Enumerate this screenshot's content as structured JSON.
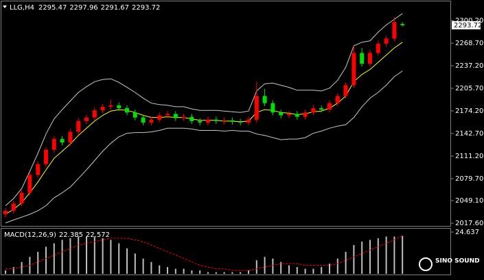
{
  "chart_data": {
    "type": "candlestick",
    "symbol": "LLG,H4",
    "up_color": "#ff0000",
    "down_color": "#00e000",
    "open": [
      2030,
      2035,
      2045,
      2060,
      2085,
      2100,
      2120,
      2135,
      2130,
      2145,
      2160,
      2165,
      2175,
      2180,
      2182,
      2178,
      2172,
      2165,
      2158,
      2162,
      2168,
      2170,
      2164,
      2166,
      2160,
      2158,
      2162,
      2160,
      2161,
      2159,
      2158,
      2162,
      2195,
      2185,
      2172,
      2168,
      2170,
      2166,
      2172,
      2178,
      2176,
      2185,
      2195,
      2210,
      2255,
      2240,
      2255,
      2268,
      2275,
      2295.47
    ],
    "high": [
      2039,
      2049,
      2064,
      2089,
      2104,
      2124,
      2139,
      2139,
      2149,
      2164,
      2169,
      2179,
      2184,
      2190,
      2186,
      2182,
      2176,
      2169,
      2166,
      2172,
      2174,
      2174,
      2170,
      2170,
      2164,
      2166,
      2166,
      2165,
      2165,
      2163,
      2166,
      2215,
      2205,
      2189,
      2176,
      2174,
      2174,
      2176,
      2182,
      2182,
      2189,
      2199,
      2214,
      2265,
      2262,
      2259,
      2272,
      2279,
      2305,
      2297.96
    ],
    "low": [
      2026,
      2031,
      2041,
      2056,
      2081,
      2096,
      2116,
      2126,
      2126,
      2141,
      2156,
      2161,
      2171,
      2176,
      2174,
      2168,
      2161,
      2154,
      2154,
      2158,
      2164,
      2160,
      2160,
      2156,
      2154,
      2154,
      2156,
      2156,
      2155,
      2154,
      2154,
      2158,
      2181,
      2168,
      2164,
      2164,
      2162,
      2162,
      2168,
      2172,
      2172,
      2181,
      2191,
      2206,
      2236,
      2236,
      2251,
      2264,
      2271,
      2291.67
    ],
    "close": [
      2035,
      2045,
      2060,
      2085,
      2100,
      2120,
      2135,
      2130,
      2145,
      2160,
      2165,
      2175,
      2180,
      2182,
      2178,
      2172,
      2165,
      2158,
      2162,
      2168,
      2170,
      2164,
      2166,
      2160,
      2158,
      2162,
      2160,
      2161,
      2159,
      2158,
      2162,
      2195,
      2185,
      2172,
      2168,
      2170,
      2166,
      2172,
      2178,
      2176,
      2185,
      2195,
      2210,
      2255,
      2240,
      2255,
      2268,
      2275,
      2298,
      2293.72
    ],
    "bands": {
      "color": "#c8c8c8",
      "middle_color": "#ffff00",
      "upper": [
        2042,
        2052,
        2066,
        2090,
        2115,
        2142,
        2163,
        2176,
        2188,
        2200,
        2208,
        2215,
        2218,
        2219,
        2214,
        2207,
        2200,
        2192,
        2185,
        2183,
        2182,
        2180,
        2180,
        2177,
        2175,
        2175,
        2175,
        2174,
        2173,
        2172,
        2174,
        2202,
        2212,
        2213,
        2210,
        2207,
        2203,
        2203,
        2203,
        2202,
        2206,
        2217,
        2235,
        2265,
        2270,
        2272,
        2284,
        2294,
        2302,
        2310
      ],
      "middle": [
        2030,
        2037,
        2046,
        2060,
        2075,
        2092,
        2108,
        2118,
        2128,
        2140,
        2150,
        2160,
        2168,
        2174,
        2176,
        2175,
        2172,
        2168,
        2165,
        2165,
        2166,
        2165,
        2165,
        2163,
        2161,
        2161,
        2161,
        2160,
        2160,
        2159,
        2160,
        2172,
        2176,
        2175,
        2172,
        2171,
        2169,
        2170,
        2173,
        2174,
        2178,
        2185,
        2195,
        2215,
        2225,
        2232,
        2242,
        2252,
        2262,
        2270
      ],
      "lower": [
        2018,
        2022,
        2026,
        2030,
        2035,
        2042,
        2053,
        2060,
        2068,
        2080,
        2092,
        2105,
        2118,
        2129,
        2138,
        2143,
        2144,
        2144,
        2145,
        2147,
        2150,
        2150,
        2150,
        2149,
        2147,
        2147,
        2147,
        2146,
        2147,
        2146,
        2146,
        2142,
        2140,
        2137,
        2134,
        2135,
        2135,
        2137,
        2143,
        2146,
        2150,
        2153,
        2155,
        2165,
        2180,
        2192,
        2200,
        2210,
        2222,
        2230
      ]
    },
    "ylim": [
      2013.8,
      2324.1
    ],
    "yticks": [
      {
        "value": 2300.2,
        "label": "2300.20"
      },
      {
        "value": 2268.7,
        "label": "2268.70"
      },
      {
        "value": 2237.2,
        "label": "2237.20"
      },
      {
        "value": 2205.7,
        "label": "2205.70"
      },
      {
        "value": 2174.2,
        "label": "2174.20"
      },
      {
        "value": 2142.7,
        "label": "2142.70"
      },
      {
        "value": 2111.2,
        "label": "2111.20"
      },
      {
        "value": 2079.7,
        "label": "2079.70"
      },
      {
        "value": 2049.1,
        "label": "2049.10"
      },
      {
        "value": 2017.6,
        "label": "2017.60"
      }
    ],
    "macd": {
      "label": "MACD(12,26,9)",
      "histogram_color": "#c0c0c0",
      "signal_color": "#ff0000",
      "histogram": [
        2,
        4,
        7,
        10,
        13,
        16,
        18,
        20,
        21,
        22,
        22,
        22,
        21,
        20,
        18,
        15,
        12,
        9,
        7,
        5,
        4,
        3,
        3,
        2,
        2,
        1,
        1,
        1,
        1,
        1,
        2,
        8,
        10,
        9,
        7,
        5,
        4,
        3,
        3,
        4,
        6,
        9,
        13,
        17,
        19,
        20,
        21,
        22,
        22,
        22.385
      ],
      "signal": [
        3,
        3,
        4,
        5,
        7,
        9,
        11,
        13,
        15,
        17,
        18,
        19,
        20,
        21,
        21,
        21,
        20,
        19,
        17,
        15,
        13,
        11,
        9,
        7,
        5,
        4,
        3,
        3,
        2,
        2,
        2,
        3,
        4,
        5,
        6,
        6,
        6,
        5,
        5,
        5,
        5,
        6,
        8,
        10,
        12,
        14,
        16,
        18,
        20,
        22.572
      ],
      "ylim": [
        0,
        26.65
      ],
      "yticks": [
        24.637
      ]
    },
    "watermark": "SINO SOUND"
  }
}
